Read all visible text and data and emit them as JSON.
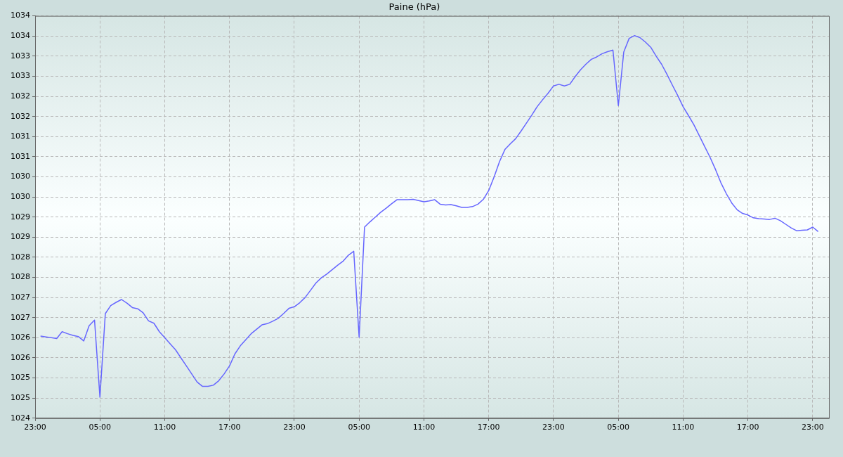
{
  "chart_data": {
    "type": "line",
    "title": "Paine (hPa)",
    "categories": [
      "23:00",
      null,
      null,
      null,
      null,
      null,
      null,
      null,
      null,
      null,
      null,
      null,
      "05:00",
      null,
      null,
      null,
      null,
      null,
      null,
      null,
      null,
      null,
      null,
      null,
      "11:00",
      null,
      null,
      null,
      null,
      null,
      null,
      null,
      null,
      null,
      null,
      null,
      "17:00",
      null,
      null,
      null,
      null,
      null,
      null,
      null,
      null,
      null,
      null,
      null,
      "23:00",
      null,
      null,
      null,
      null,
      null,
      null,
      null,
      null,
      null,
      null,
      null,
      "05:00",
      null,
      null,
      null,
      null,
      null,
      null,
      null,
      null,
      null,
      null,
      null,
      "11:00",
      null,
      null,
      null,
      null,
      null,
      null,
      null,
      null,
      null,
      null,
      null,
      "17:00",
      null,
      null,
      null,
      null,
      null,
      null,
      null,
      null,
      null,
      null,
      null,
      "23:00",
      null,
      null,
      null,
      null,
      null,
      null,
      null,
      null,
      null,
      null,
      null,
      "05:00",
      null,
      null,
      null,
      null,
      null,
      null,
      null,
      null,
      null,
      null,
      null,
      "11:00",
      null,
      null,
      null,
      null,
      null,
      null,
      null,
      null,
      null,
      null,
      null,
      "17:00",
      null,
      null,
      null,
      null,
      null,
      null,
      null,
      null,
      null,
      null,
      null,
      "23:00",
      null,
      null,
      null
    ],
    "series": [
      {
        "color": "#6666ff",
        "values": [
          null,
          1026.04,
          1026.02,
          1026.0,
          1025.98,
          1026.15,
          1026.1,
          1026.06,
          1026.03,
          1025.92,
          1026.3,
          1026.44,
          1024.52,
          1026.6,
          1026.8,
          1026.88,
          1026.95,
          1026.86,
          1026.75,
          1026.72,
          1026.62,
          1026.42,
          1026.36,
          1026.15,
          1026.0,
          1025.85,
          1025.7,
          1025.5,
          1025.3,
          1025.1,
          1024.9,
          1024.79,
          1024.79,
          1024.82,
          1024.93,
          1025.1,
          1025.3,
          1025.6,
          1025.8,
          1025.95,
          1026.1,
          1026.21,
          1026.32,
          1026.35,
          1026.41,
          1026.48,
          1026.6,
          1026.73,
          1026.77,
          1026.87,
          1027.0,
          1027.18,
          1027.36,
          1027.49,
          1027.58,
          1027.69,
          1027.8,
          1027.9,
          1028.05,
          1028.15,
          1026.01,
          1028.75,
          1028.88,
          1029.0,
          1029.12,
          1029.22,
          1029.33,
          1029.43,
          1029.43,
          1029.43,
          1029.44,
          1029.41,
          1029.38,
          1029.4,
          1029.43,
          1029.32,
          1029.3,
          1029.31,
          1029.28,
          1029.24,
          1029.24,
          1029.26,
          1029.32,
          1029.44,
          1029.66,
          1030.0,
          1030.38,
          1030.68,
          1030.82,
          1030.95,
          1031.14,
          1031.34,
          1031.54,
          1031.75,
          1031.92,
          1032.08,
          1032.26,
          1032.3,
          1032.26,
          1032.3,
          1032.49,
          1032.66,
          1032.8,
          1032.92,
          1032.98,
          1033.06,
          1033.11,
          1033.15,
          1031.77,
          1033.1,
          1033.44,
          1033.51,
          1033.46,
          1033.35,
          1033.22,
          1033.0,
          1032.8,
          1032.55,
          1032.28,
          1032.02,
          1031.74,
          1031.52,
          1031.29,
          1031.02,
          1030.75,
          1030.48,
          1030.18,
          1029.85,
          1029.58,
          1029.35,
          1029.18,
          1029.09,
          1029.05,
          1028.98,
          1028.96,
          1028.95,
          1028.94,
          1028.97,
          1028.91,
          1028.82,
          1028.73,
          1028.66,
          1028.67,
          1028.68,
          1028.75,
          1028.64,
          null,
          null
        ]
      }
    ],
    "ylim": [
      1024,
      1034
    ],
    "yticks": [
      1024,
      {
        "value": 1024.5,
        "label": "1025"
      },
      1025,
      {
        "value": 1025.5,
        "label": "1026"
      },
      1026,
      {
        "value": 1026.5,
        "label": "1027"
      },
      1027,
      {
        "value": 1027.5,
        "label": "1028"
      },
      1028,
      {
        "value": 1028.5,
        "label": "1029"
      },
      1029,
      {
        "value": 1029.5,
        "label": "1030"
      },
      1030,
      {
        "value": 1030.5,
        "label": "1031"
      },
      1031,
      {
        "value": 1031.5,
        "label": "1032"
      },
      1032,
      {
        "value": 1032.5,
        "label": "1033"
      },
      1033,
      {
        "value": 1033.5,
        "label": "1034"
      },
      1034
    ],
    "grid": true,
    "marker": "none",
    "line_style": "solid"
  }
}
